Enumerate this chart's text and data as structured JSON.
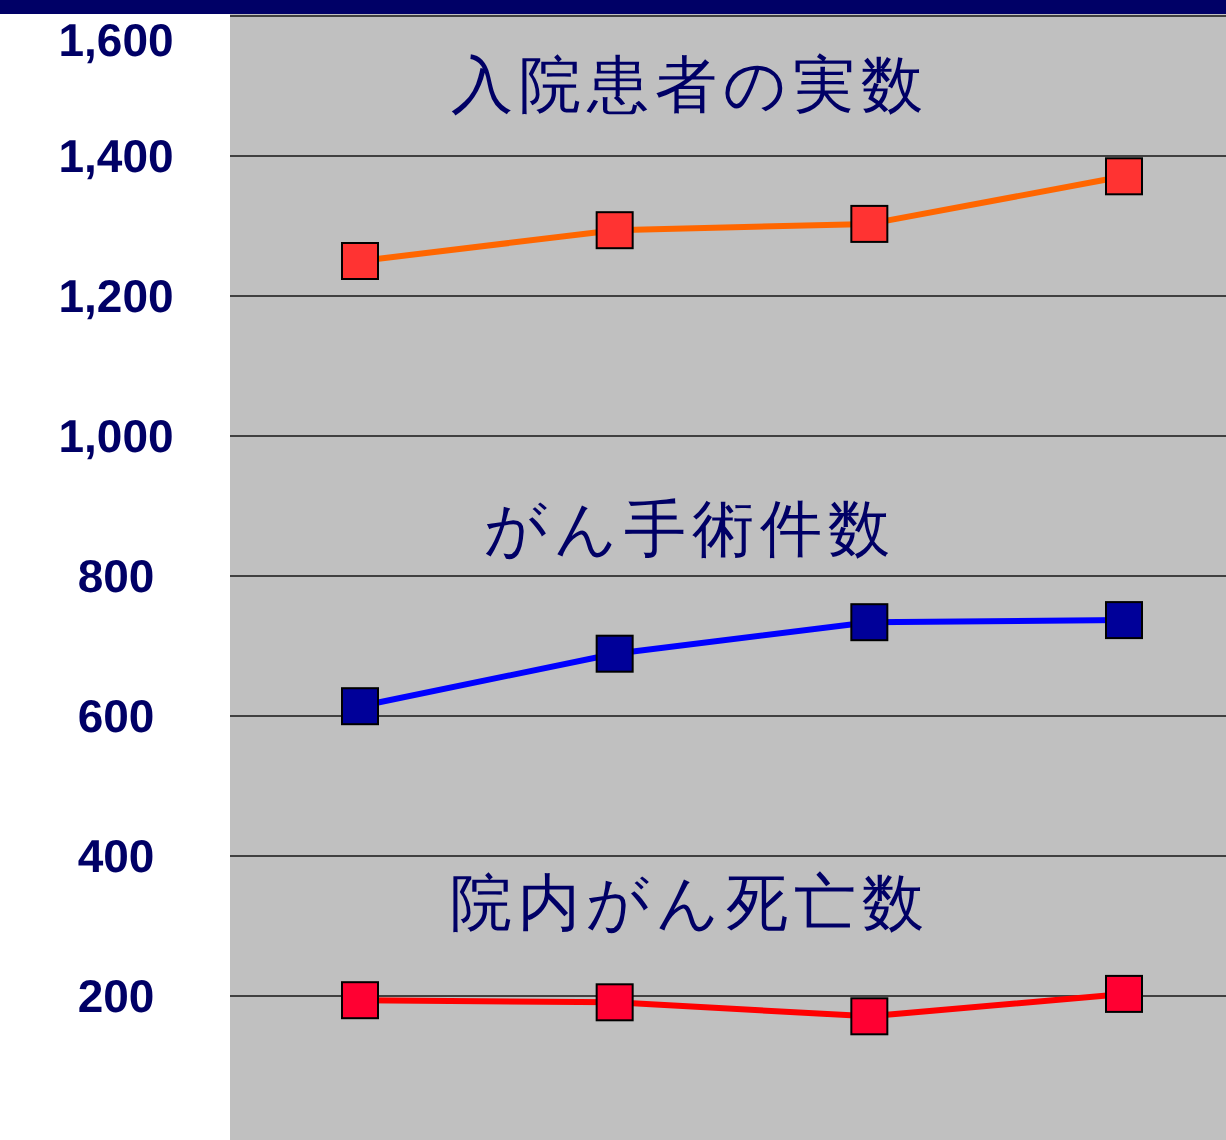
{
  "chart_data": {
    "type": "line",
    "categories": [
      null,
      null,
      null,
      null
    ],
    "ylim": [
      0,
      1600
    ],
    "yticks": [
      200,
      400,
      600,
      800,
      {
        "value": 1000,
        "label": "1,000"
      },
      {
        "value": 1200,
        "label": "1,200"
      },
      {
        "value": 1400,
        "label": "1,400"
      },
      {
        "value": 1600,
        "label": "1,600"
      }
    ],
    "grid": "y",
    "tick_labels": "y",
    "marker": "square",
    "line_style": "solid",
    "series": [
      {
        "name": "入院患者の実数",
        "color": "#ff6600",
        "values": [
          1250,
          1294,
          1303,
          1371
        ]
      },
      {
        "name": "がん手術件数",
        "color": "#0000ff",
        "values": [
          614,
          689,
          734,
          737
        ]
      },
      {
        "name": "院内がん死亡数",
        "color": "#ff0000",
        "values": [
          194,
          191,
          171,
          203
        ]
      }
    ]
  }
}
